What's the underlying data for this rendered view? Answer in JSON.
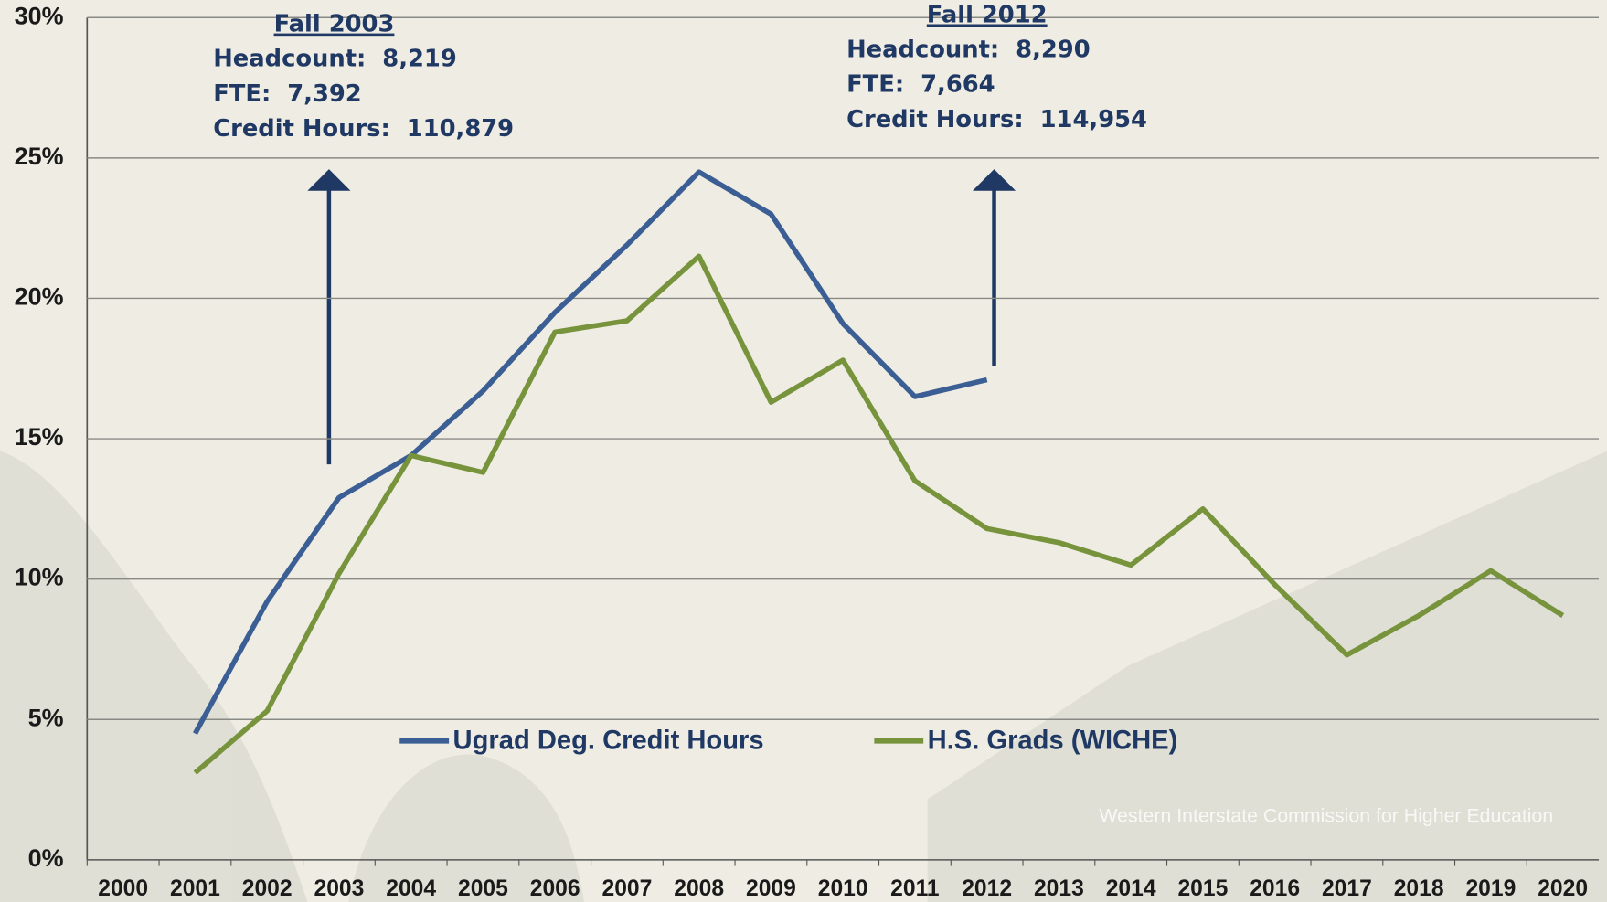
{
  "chart_data": {
    "type": "line",
    "categories": [
      "2000",
      "2001",
      "2002",
      "2003",
      "2004",
      "2005",
      "2006",
      "2007",
      "2008",
      "2009",
      "2010",
      "2011",
      "2012",
      "2013",
      "2014",
      "2015",
      "2016",
      "2017",
      "2018",
      "2019",
      "2020"
    ],
    "series": [
      {
        "name": "Ugrad Deg. Credit Hours",
        "color": "#3b5e94",
        "values": [
          null,
          4.5,
          9.2,
          12.9,
          14.4,
          16.7,
          19.5,
          21.9,
          24.5,
          23.0,
          19.1,
          16.5,
          17.1,
          null,
          null,
          null,
          null,
          null,
          null,
          null,
          null
        ]
      },
      {
        "name": "H.S. Grads (WICHE)",
        "color": "#77933c",
        "values": [
          null,
          3.1,
          5.3,
          10.2,
          14.4,
          13.8,
          18.8,
          19.2,
          21.5,
          16.3,
          17.8,
          13.5,
          11.8,
          11.3,
          10.5,
          12.5,
          9.8,
          7.3,
          8.7,
          10.3,
          8.7
        ]
      }
    ],
    "ylim": [
      0,
      30
    ],
    "yticks": [
      {
        "value": 0,
        "label": "0%"
      },
      {
        "value": 5,
        "label": "5%"
      },
      {
        "value": 10,
        "label": "10%"
      },
      {
        "value": 15,
        "label": "15%"
      },
      {
        "value": 20,
        "label": "20%"
      },
      {
        "value": 25,
        "label": "25%"
      },
      {
        "value": 30,
        "label": "30%"
      }
    ],
    "grid": true,
    "legend": "lower center",
    "annotations": [
      {
        "title": "Fall 2003",
        "lines": [
          "Headcount:  8,219",
          "FTE:  7,392",
          "Credit Hours:  110,879"
        ]
      },
      {
        "title": "Fall 2012",
        "lines": [
          "Headcount:  8,290",
          "FTE:  7,664",
          "Credit Hours:  114,954"
        ]
      }
    ],
    "source": "Western Interstate Commission for Higher Education"
  }
}
